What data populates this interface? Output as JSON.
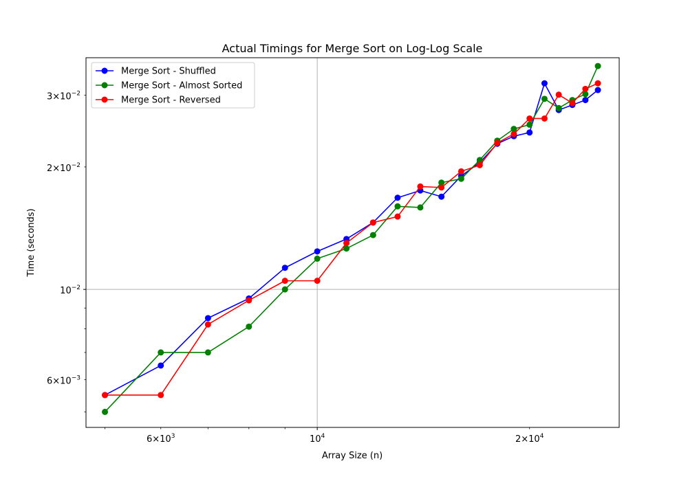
{
  "chart_data": {
    "type": "line",
    "title": "Actual Timings for Merge Sort on Log-Log Scale",
    "xlabel": "Array Size (n)",
    "ylabel": "Time (seconds)",
    "xscale": "log",
    "yscale": "log",
    "xlim": [
      4700,
      26800
    ],
    "ylim": [
      0.00458,
      0.0371
    ],
    "grid": true,
    "legend_position": "top-left",
    "x_ticks": [
      {
        "value": 6000,
        "base": "6×10",
        "exp": "3"
      },
      {
        "value": 10000,
        "base": "10",
        "exp": "4"
      },
      {
        "value": 20000,
        "base": "2×10",
        "exp": "4"
      }
    ],
    "y_ticks": [
      {
        "value": 0.006,
        "base": "6×10",
        "exp": "−3"
      },
      {
        "value": 0.01,
        "base": "10",
        "exp": "−2"
      },
      {
        "value": 0.02,
        "base": "2×10",
        "exp": "−2"
      },
      {
        "value": 0.03,
        "base": "3×10",
        "exp": "−2"
      }
    ],
    "x": [
      5000,
      6000,
      7000,
      8000,
      9000,
      10000,
      11000,
      12000,
      13000,
      14000,
      15000,
      16000,
      17000,
      18000,
      19000,
      20000,
      21000,
      22000,
      23000,
      24000,
      25000
    ],
    "series": [
      {
        "name": "Merge Sort - Shuffled",
        "color": "#0000ff",
        "values": [
          0.0055,
          0.0065,
          0.0085,
          0.0095,
          0.0113,
          0.0124,
          0.0133,
          0.0146,
          0.0168,
          0.0175,
          0.0169,
          0.019,
          0.0205,
          0.0228,
          0.0238,
          0.0243,
          0.0321,
          0.0276,
          0.0284,
          0.0292,
          0.0309
        ]
      },
      {
        "name": "Merge Sort - Almost Sorted",
        "color": "#008000",
        "values": [
          0.005,
          0.007,
          0.007,
          0.0081,
          0.01,
          0.0119,
          0.0126,
          0.0136,
          0.016,
          0.0159,
          0.0183,
          0.0187,
          0.0208,
          0.0232,
          0.0248,
          0.0254,
          0.0294,
          0.0279,
          0.0292,
          0.0302,
          0.0354
        ]
      },
      {
        "name": "Merge Sort - Reversed",
        "color": "#ff0000",
        "values": [
          0.0055,
          0.0055,
          0.0082,
          0.0094,
          0.0105,
          0.0105,
          0.013,
          0.0146,
          0.0151,
          0.0179,
          0.0178,
          0.0195,
          0.0202,
          0.0229,
          0.0241,
          0.0263,
          0.0263,
          0.0301,
          0.0287,
          0.0311,
          0.0321
        ]
      }
    ]
  }
}
